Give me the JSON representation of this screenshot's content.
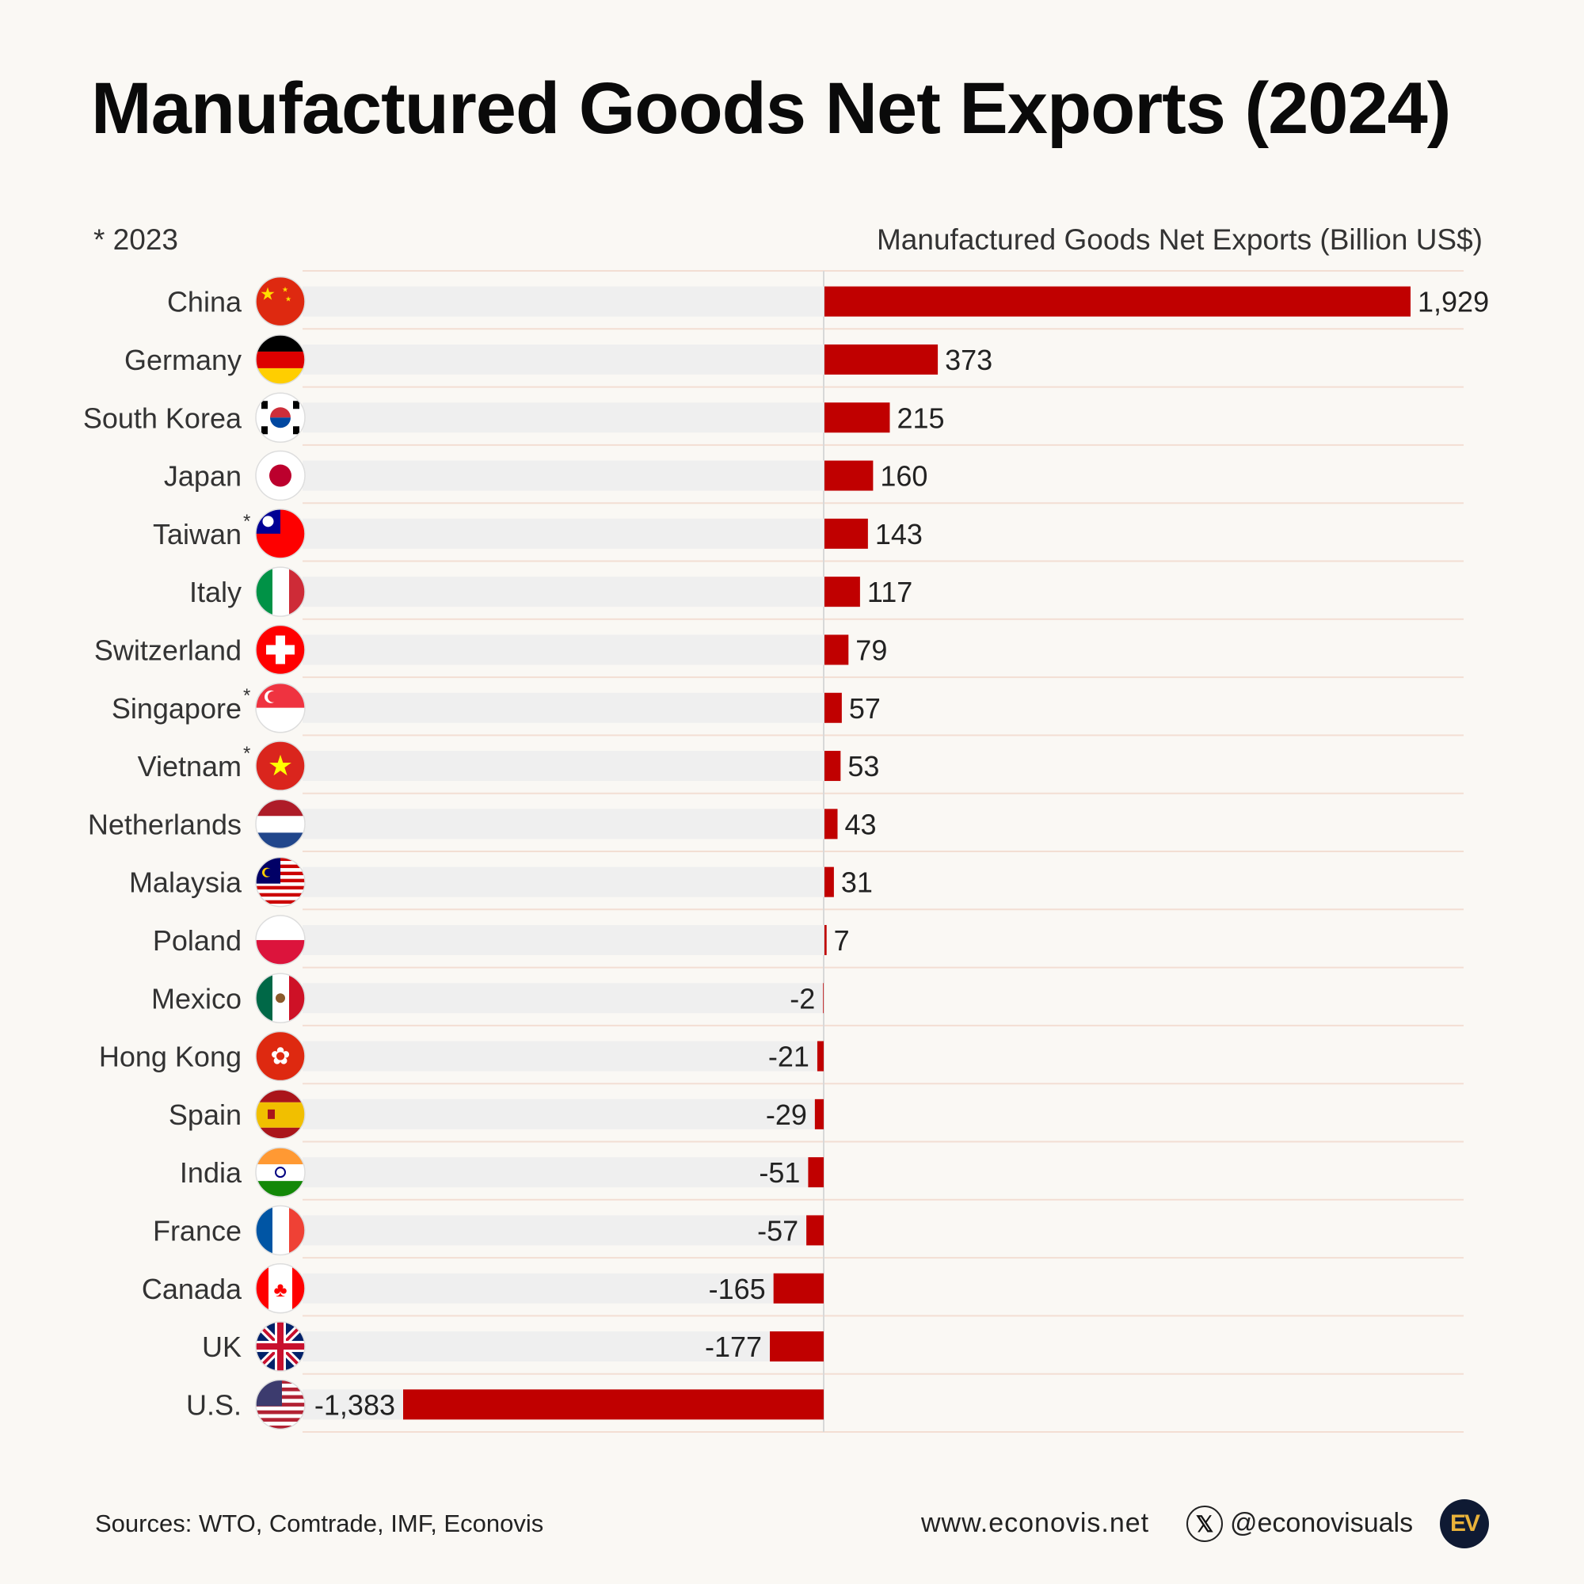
{
  "title": "Manufactured Goods Net Exports (2024)",
  "note": "* 2023",
  "colors": {
    "bar": "#c00000",
    "track": "#efefef",
    "background": "#faf8f4"
  },
  "chart_data": {
    "type": "bar",
    "orientation": "horizontal",
    "title": "Manufactured Goods Net Exports (2024)",
    "xlabel": "Manufactured Goods Net Exports (Billion US$)",
    "ylabel": "",
    "xlim": [
      -1383,
      1929
    ],
    "grid": false,
    "categories": [
      "China",
      "Germany",
      "South Korea",
      "Japan",
      "Taiwan",
      "Italy",
      "Switzerland",
      "Singapore",
      "Vietnam",
      "Netherlands",
      "Malaysia",
      "Poland",
      "Mexico",
      "Hong Kong",
      "Spain",
      "India",
      "France",
      "Canada",
      "UK",
      "U.S."
    ],
    "values": [
      1929,
      373,
      215,
      160,
      143,
      117,
      79,
      57,
      53,
      43,
      31,
      7,
      -2,
      -21,
      -29,
      -51,
      -57,
      -165,
      -177,
      -1383
    ],
    "labels": [
      "1,929",
      "373",
      "215",
      "160",
      "143",
      "117",
      "79",
      "57",
      "53",
      "43",
      "31",
      "7",
      "-2",
      "-21",
      "-29",
      "-51",
      "-57",
      "-165",
      "-177",
      "-1,383"
    ],
    "marked_2023": [
      false,
      false,
      false,
      false,
      true,
      false,
      false,
      true,
      true,
      false,
      false,
      false,
      false,
      false,
      false,
      false,
      false,
      false,
      false,
      false
    ],
    "flags": [
      "china-flag-icon",
      "germany-flag-icon",
      "south-korea-flag-icon",
      "japan-flag-icon",
      "taiwan-flag-icon",
      "italy-flag-icon",
      "switzerland-flag-icon",
      "singapore-flag-icon",
      "vietnam-flag-icon",
      "netherlands-flag-icon",
      "malaysia-flag-icon",
      "poland-flag-icon",
      "mexico-flag-icon",
      "hong-kong-flag-icon",
      "spain-flag-icon",
      "india-flag-icon",
      "france-flag-icon",
      "canada-flag-icon",
      "uk-flag-icon",
      "us-flag-icon"
    ]
  },
  "footer": {
    "sources": "Sources: WTO, Comtrade, IMF, Econovis",
    "website": "www.econovis.net",
    "x_icon": "𝕏",
    "handle": "@econovisuals",
    "logo": "EV"
  }
}
